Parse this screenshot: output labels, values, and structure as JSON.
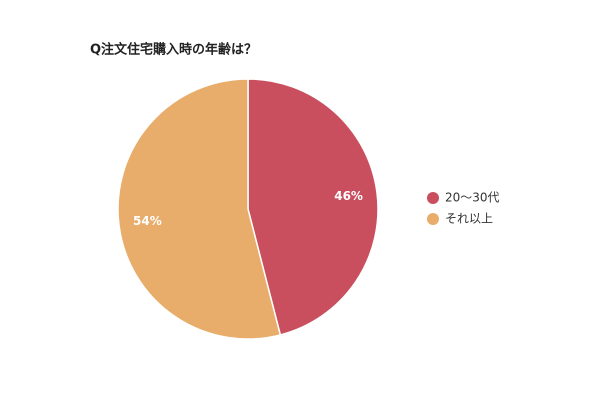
{
  "chart_data": {
    "type": "pie",
    "title": "Q注文住宅購入時の年齢は？",
    "categories": [
      "20〜30代",
      "それ以上"
    ],
    "values": [
      46,
      54
    ],
    "value_labels": [
      "46%",
      "54%"
    ],
    "colors": [
      "#c94f5e",
      "#e8ad6a"
    ],
    "legend": "right"
  }
}
